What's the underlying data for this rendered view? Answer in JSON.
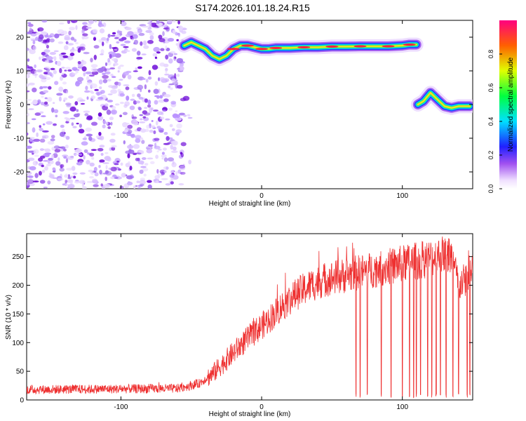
{
  "title": "S174.2026.101.18.24.R15",
  "chart_data": [
    {
      "type": "heatmap",
      "name": "spectrogram",
      "xlabel": "Height of straight line (km)",
      "ylabel": "Frequency (Hz)",
      "xlim": [
        -167,
        150
      ],
      "ylim": [
        -25,
        25
      ],
      "xticks": [
        -100,
        0,
        100
      ],
      "yticks": [
        -20,
        -10,
        0,
        10,
        20
      ],
      "colorbar": {
        "label": "Normalized spectral amplitude",
        "range": [
          0,
          1
        ],
        "ticks": [
          "0.0",
          "0.2",
          "0.4",
          "0.6",
          "0.8"
        ]
      },
      "tracks": [
        {
          "name": "upper-track",
          "x": [
            -55,
            -50,
            -45,
            -40,
            -35,
            -30,
            -25,
            -20,
            -15,
            -10,
            -5,
            0,
            5,
            10,
            20,
            30,
            40,
            50,
            60,
            70,
            80,
            90,
            100,
            105,
            110
          ],
          "y": [
            17.5,
            18.5,
            17.5,
            16.5,
            14.5,
            13.5,
            14.5,
            16.5,
            17.5,
            17.5,
            17.0,
            16.5,
            16.5,
            16.8,
            16.8,
            17.0,
            17.0,
            17.2,
            17.2,
            17.3,
            17.3,
            17.3,
            17.5,
            17.8,
            17.8
          ]
        },
        {
          "name": "lower-track",
          "x": [
            111,
            115,
            120,
            125,
            130,
            135,
            140,
            145,
            148
          ],
          "y": [
            0.0,
            1.0,
            3.5,
            1.5,
            -0.5,
            -1.0,
            -0.5,
            -0.5,
            -0.5
          ]
        }
      ],
      "noise_region": [
        -167,
        -55
      ]
    },
    {
      "type": "line",
      "name": "snr",
      "xlabel": "Height of straight line (km)",
      "ylabel": "SNR (10 * v/v)",
      "xlim": [
        -167,
        150
      ],
      "ylim": [
        0,
        290
      ],
      "xticks": [
        -100,
        0,
        100
      ],
      "yticks": [
        0,
        50,
        100,
        150,
        200,
        250
      ],
      "color": "#ee3030",
      "trend": {
        "x": [
          -167,
          -60,
          -45,
          -35,
          -25,
          -15,
          -5,
          5,
          15,
          25,
          35,
          45,
          55,
          65,
          75,
          85,
          95,
          105,
          115,
          125,
          130,
          135,
          140,
          145,
          150
        ],
        "y": [
          18,
          20,
          28,
          45,
          70,
          95,
          118,
          140,
          165,
          185,
          200,
          210,
          215,
          220,
          225,
          230,
          235,
          240,
          245,
          250,
          255,
          250,
          200,
          210,
          235
        ]
      },
      "dropouts": [
        67,
        70,
        75,
        85,
        92,
        100,
        105,
        108,
        110,
        113,
        118,
        121,
        124,
        127,
        131,
        136,
        140,
        146,
        148
      ]
    }
  ]
}
